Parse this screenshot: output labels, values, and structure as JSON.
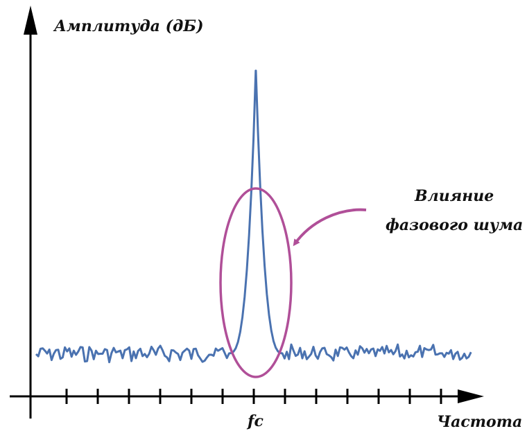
{
  "axes": {
    "y_label": "Амплитуда (дБ)",
    "x_label": "Частота",
    "carrier_label": "fc"
  },
  "annotation": {
    "line1": "Влияние",
    "line2": "фазового шума"
  },
  "colors": {
    "signal": "#4a72b0",
    "highlight": "#b04f98",
    "axis": "#000000"
  },
  "ticks_on_x_axis": 13
}
